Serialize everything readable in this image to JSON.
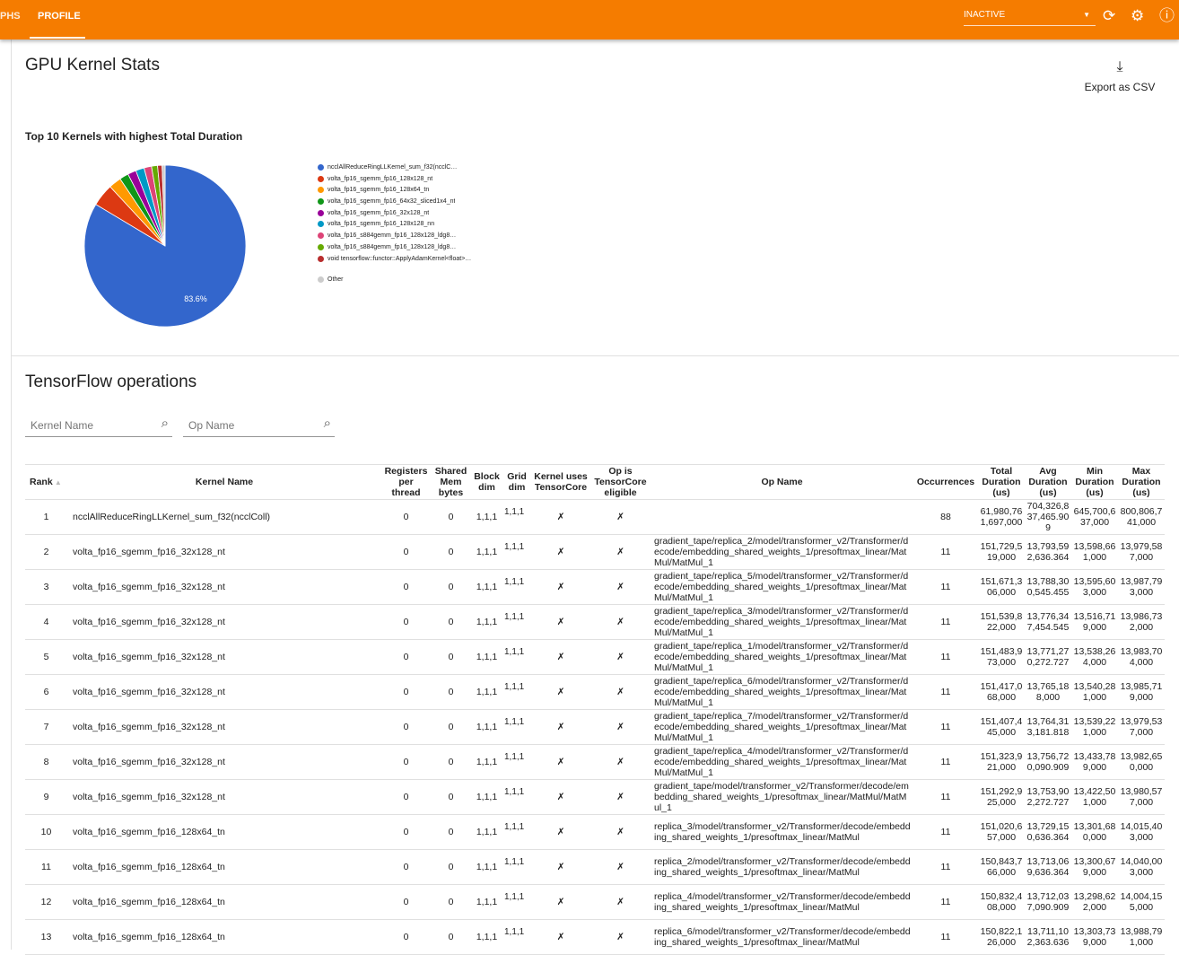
{
  "nav": {
    "tabs": [
      "PHS",
      "PROFILE"
    ],
    "active": "PROFILE",
    "run_select": "INACTIVE",
    "icons": [
      "refresh-icon",
      "settings-icon",
      "help-icon"
    ]
  },
  "page": {
    "title": "GPU Kernel Stats",
    "export_label": "Export as CSV"
  },
  "chart_data": {
    "type": "pie",
    "title": "Top 10 Kernels with highest Total Duration",
    "categories": [
      "ncclAllReduceRingLLKernel_sum_f32(ncclC…",
      "volta_fp16_sgemm_fp16_128x128_nt",
      "volta_fp16_sgemm_fp16_128x64_tn",
      "volta_fp16_sgemm_fp16_64x32_sliced1x4_nt",
      "volta_fp16_sgemm_fp16_32x128_nt",
      "volta_fp16_sgemm_fp16_128x128_nn",
      "volta_fp16_s884gemm_fp16_128x128_ldg8…",
      "volta_fp16_s884gemm_fp16_128x128_ldg8…",
      "void tensorflow::functor::ApplyAdamKernel<float>…",
      "Other"
    ],
    "values": [
      83.6,
      4.5,
      2.5,
      1.8,
      1.7,
      1.7,
      1.5,
      1.2,
      0.9,
      0.6
    ],
    "colors": [
      "#3366cc",
      "#dc3912",
      "#ff9900",
      "#109618",
      "#990099",
      "#0099c6",
      "#dd4477",
      "#66aa00",
      "#b82e2e",
      "#cccccc"
    ],
    "data_labels": [
      "83.6%"
    ],
    "legend": "right"
  },
  "ops": {
    "title": "TensorFlow operations",
    "kernel_search_placeholder": "Kernel Name",
    "op_search_placeholder": "Op Name",
    "columns": [
      "Rank",
      "Kernel Name",
      "Registers per thread",
      "Shared Mem bytes",
      "Block dim",
      "Grid dim",
      "Kernel uses TensorCore",
      "Op is TensorCore eligible",
      "Op Name",
      "Occurrences",
      "Total Duration (us)",
      "Avg Duration (us)",
      "Min Duration (us)",
      "Max Duration (us)"
    ],
    "rows": [
      [
        "1",
        "ncclAllReduceRingLLKernel_sum_f32(ncclColl)",
        "0",
        "0",
        "1,1,1",
        "1,1,1",
        "✗",
        "✗",
        "",
        "88",
        "61,980,761,697,000",
        "704,326,837,465.909",
        "645,700,637,000",
        "800,806,741,000"
      ],
      [
        "2",
        "volta_fp16_sgemm_fp16_32x128_nt",
        "0",
        "0",
        "1,1,1",
        "1,1,1",
        "✗",
        "✗",
        "gradient_tape/replica_2/model/transformer_v2/Transformer/decode/embedding_shared_weights_1/presoftmax_linear/MatMul/MatMul_1",
        "11",
        "151,729,519,000",
        "13,793,592,636.364",
        "13,598,661,000",
        "13,979,587,000"
      ],
      [
        "3",
        "volta_fp16_sgemm_fp16_32x128_nt",
        "0",
        "0",
        "1,1,1",
        "1,1,1",
        "✗",
        "✗",
        "gradient_tape/replica_5/model/transformer_v2/Transformer/decode/embedding_shared_weights_1/presoftmax_linear/MatMul/MatMul_1",
        "11",
        "151,671,306,000",
        "13,788,300,545.455",
        "13,595,603,000",
        "13,987,793,000"
      ],
      [
        "4",
        "volta_fp16_sgemm_fp16_32x128_nt",
        "0",
        "0",
        "1,1,1",
        "1,1,1",
        "✗",
        "✗",
        "gradient_tape/replica_3/model/transformer_v2/Transformer/decode/embedding_shared_weights_1/presoftmax_linear/MatMul/MatMul_1",
        "11",
        "151,539,822,000",
        "13,776,347,454.545",
        "13,516,719,000",
        "13,986,732,000"
      ],
      [
        "5",
        "volta_fp16_sgemm_fp16_32x128_nt",
        "0",
        "0",
        "1,1,1",
        "1,1,1",
        "✗",
        "✗",
        "gradient_tape/replica_1/model/transformer_v2/Transformer/decode/embedding_shared_weights_1/presoftmax_linear/MatMul/MatMul_1",
        "11",
        "151,483,973,000",
        "13,771,270,272.727",
        "13,538,264,000",
        "13,983,704,000"
      ],
      [
        "6",
        "volta_fp16_sgemm_fp16_32x128_nt",
        "0",
        "0",
        "1,1,1",
        "1,1,1",
        "✗",
        "✗",
        "gradient_tape/replica_6/model/transformer_v2/Transformer/decode/embedding_shared_weights_1/presoftmax_linear/MatMul/MatMul_1",
        "11",
        "151,417,068,000",
        "13,765,188,000",
        "13,540,281,000",
        "13,985,719,000"
      ],
      [
        "7",
        "volta_fp16_sgemm_fp16_32x128_nt",
        "0",
        "0",
        "1,1,1",
        "1,1,1",
        "✗",
        "✗",
        "gradient_tape/replica_7/model/transformer_v2/Transformer/decode/embedding_shared_weights_1/presoftmax_linear/MatMul/MatMul_1",
        "11",
        "151,407,445,000",
        "13,764,313,181.818",
        "13,539,221,000",
        "13,979,537,000"
      ],
      [
        "8",
        "volta_fp16_sgemm_fp16_32x128_nt",
        "0",
        "0",
        "1,1,1",
        "1,1,1",
        "✗",
        "✗",
        "gradient_tape/replica_4/model/transformer_v2/Transformer/decode/embedding_shared_weights_1/presoftmax_linear/MatMul/MatMul_1",
        "11",
        "151,323,921,000",
        "13,756,720,090.909",
        "13,433,789,000",
        "13,982,650,000"
      ],
      [
        "9",
        "volta_fp16_sgemm_fp16_32x128_nt",
        "0",
        "0",
        "1,1,1",
        "1,1,1",
        "✗",
        "✗",
        "gradient_tape/model/transformer_v2/Transformer/decode/embedding_shared_weights_1/presoftmax_linear/MatMul/MatMul_1",
        "11",
        "151,292,925,000",
        "13,753,902,272.727",
        "13,422,501,000",
        "13,980,577,000"
      ],
      [
        "10",
        "volta_fp16_sgemm_fp16_128x64_tn",
        "0",
        "0",
        "1,1,1",
        "1,1,1",
        "✗",
        "✗",
        "replica_3/model/transformer_v2/Transformer/decode/embedding_shared_weights_1/presoftmax_linear/MatMul",
        "11",
        "151,020,657,000",
        "13,729,150,636.364",
        "13,301,680,000",
        "14,015,403,000"
      ],
      [
        "11",
        "volta_fp16_sgemm_fp16_128x64_tn",
        "0",
        "0",
        "1,1,1",
        "1,1,1",
        "✗",
        "✗",
        "replica_2/model/transformer_v2/Transformer/decode/embedding_shared_weights_1/presoftmax_linear/MatMul",
        "11",
        "150,843,766,000",
        "13,713,069,636.364",
        "13,300,679,000",
        "14,040,003,000"
      ],
      [
        "12",
        "volta_fp16_sgemm_fp16_128x64_tn",
        "0",
        "0",
        "1,1,1",
        "1,1,1",
        "✗",
        "✗",
        "replica_4/model/transformer_v2/Transformer/decode/embedding_shared_weights_1/presoftmax_linear/MatMul",
        "11",
        "150,832,408,000",
        "13,712,037,090.909",
        "13,298,622,000",
        "14,004,155,000"
      ],
      [
        "13",
        "volta_fp16_sgemm_fp16_128x64_tn",
        "0",
        "0",
        "1,1,1",
        "1,1,1",
        "✗",
        "✗",
        "replica_6/model/transformer_v2/Transformer/decode/embedding_shared_weights_1/presoftmax_linear/MatMul",
        "11",
        "150,822,126,000",
        "13,711,102,363.636",
        "13,303,739,000",
        "13,988,791,000"
      ]
    ]
  }
}
